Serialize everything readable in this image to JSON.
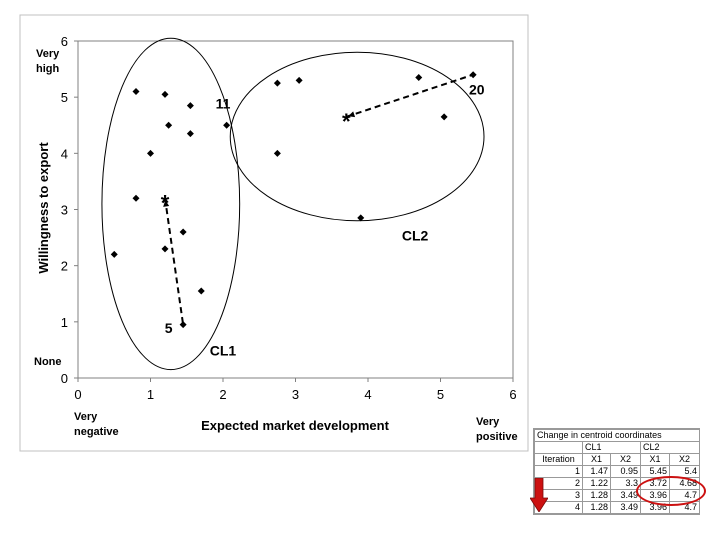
{
  "chart_data": {
    "type": "scatter",
    "xlabel": "Expected market development",
    "ylabel": "Willingness to export",
    "xlim": [
      0,
      6
    ],
    "ylim": [
      0,
      6
    ],
    "xticks": [
      "0",
      "1",
      "2",
      "3",
      "4",
      "5",
      "6"
    ],
    "yticks": [
      "0",
      "1",
      "2",
      "3",
      "4",
      "5",
      "6"
    ],
    "grid": false,
    "points": [
      {
        "x": 0.5,
        "y": 2.2
      },
      {
        "x": 0.8,
        "y": 5.1
      },
      {
        "x": 0.8,
        "y": 3.2
      },
      {
        "x": 1.0,
        "y": 4.0
      },
      {
        "x": 1.2,
        "y": 5.05
      },
      {
        "x": 1.2,
        "y": 2.3
      },
      {
        "x": 1.25,
        "y": 4.5
      },
      {
        "x": 1.45,
        "y": 2.6
      },
      {
        "x": 1.45,
        "y": 0.95
      },
      {
        "x": 1.55,
        "y": 4.85
      },
      {
        "x": 1.55,
        "y": 4.35
      },
      {
        "x": 1.7,
        "y": 1.55
      },
      {
        "x": 2.05,
        "y": 4.5
      },
      {
        "x": 2.75,
        "y": 5.25
      },
      {
        "x": 2.75,
        "y": 4.0
      },
      {
        "x": 3.05,
        "y": 5.3
      },
      {
        "x": 3.9,
        "y": 2.85
      },
      {
        "x": 4.7,
        "y": 5.35
      },
      {
        "x": 5.05,
        "y": 4.65
      },
      {
        "x": 5.45,
        "y": 5.4
      }
    ],
    "centroids": [
      {
        "x": 1.2,
        "y": 3.2
      },
      {
        "x": 3.7,
        "y": 4.65
      }
    ],
    "centroid_paths": [
      {
        "from": {
          "x": 1.2,
          "y": 3.2
        },
        "to": {
          "x": 1.45,
          "y": 0.95
        }
      },
      {
        "from": {
          "x": 3.7,
          "y": 4.65
        },
        "to": {
          "x": 5.45,
          "y": 5.4
        }
      }
    ],
    "clusters": [
      {
        "label": "CL1",
        "center": {
          "x": 1.28,
          "y": 3.1
        },
        "rx": 0.95,
        "ry": 2.95
      },
      {
        "label": "CL2",
        "center": {
          "x": 3.85,
          "y": 4.3
        },
        "rx": 1.75,
        "ry": 1.5
      }
    ],
    "point_labels": [
      {
        "text": "11",
        "x": 2.0,
        "y": 4.8
      },
      {
        "text": "20",
        "x": 5.5,
        "y": 5.05
      },
      {
        "text": "5",
        "x": 1.25,
        "y": 0.8
      },
      {
        "text": "CL1",
        "x": 2.0,
        "y": 0.4
      },
      {
        "text": "CL2",
        "x": 4.65,
        "y": 2.45
      }
    ],
    "corner_labels": {
      "very_high": [
        "Very",
        "high"
      ],
      "none": "None",
      "very_negative": [
        "Very",
        "negative"
      ],
      "very_positive": [
        "Very",
        "positive"
      ]
    },
    "star_glyph": "*"
  },
  "table": {
    "title": "Change in centroid coordinates",
    "groups": [
      "CL1",
      "CL2"
    ],
    "columns": [
      "Iteration",
      "X1",
      "X2",
      "X1",
      "X2"
    ],
    "rows": [
      [
        "1",
        "1.47",
        "0.95",
        "5.45",
        "5.4"
      ],
      [
        "2",
        "1.22",
        "3.3",
        "3.72",
        "4.68"
      ],
      [
        "3",
        "1.28",
        "3.49",
        "3.96",
        "4.7"
      ],
      [
        "4",
        "1.28",
        "3.49",
        "3.96",
        "4.7"
      ]
    ]
  },
  "colors": {
    "marker": "#000000",
    "plot_border": "#808080",
    "highlight": "#cc1111",
    "arrow": "#cc1111"
  }
}
